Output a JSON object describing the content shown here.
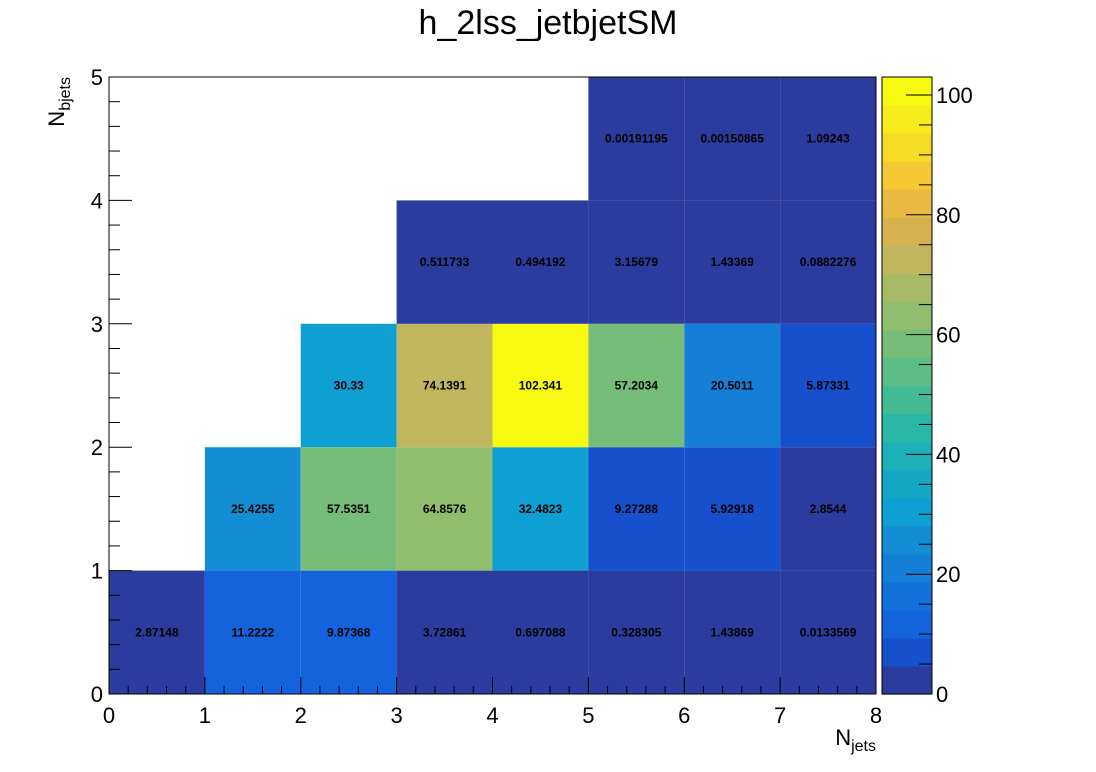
{
  "chart_data": {
    "type": "heatmap",
    "title": "h_2lss_jetbjetSM",
    "xlabel": {
      "main": "N",
      "sub": "jets"
    },
    "ylabel": {
      "main": "N",
      "sub": "bjets"
    },
    "xlim": [
      0,
      8
    ],
    "ylim": [
      0,
      5
    ],
    "x_ticks": [
      "0",
      "1",
      "2",
      "3",
      "4",
      "5",
      "6",
      "7",
      "8"
    ],
    "y_ticks": [
      "0",
      "1",
      "2",
      "3",
      "4",
      "5"
    ],
    "zlim": [
      0,
      103
    ],
    "colorbar_ticks": [
      {
        "value": 0,
        "label": "0"
      },
      {
        "value": 20,
        "label": "20"
      },
      {
        "value": 40,
        "label": "40"
      },
      {
        "value": 60,
        "label": "60"
      },
      {
        "value": 80,
        "label": "80"
      },
      {
        "value": 100,
        "label": "100"
      }
    ],
    "palette": [
      "#2b3c9e",
      "#1750cc",
      "#1563dc",
      "#1371db",
      "#157fd8",
      "#138dd4",
      "#0ea0d2",
      "#14a8c5",
      "#1bb1b6",
      "#2ab8a6",
      "#42bb95",
      "#5cbd86",
      "#77bd7a",
      "#91bd6e",
      "#a9ba66",
      "#c1b65d",
      "#d5b24e",
      "#e9b941",
      "#f5c834",
      "#f6db26",
      "#f5ec1a",
      "#f7f911"
    ],
    "cells": [
      {
        "x": 0.5,
        "y": 0.5,
        "value": 2.87148,
        "label": "2.87148"
      },
      {
        "x": 1.5,
        "y": 0.5,
        "value": 11.2222,
        "label": "11.2222"
      },
      {
        "x": 2.5,
        "y": 0.5,
        "value": 9.87368,
        "label": "9.87368"
      },
      {
        "x": 3.5,
        "y": 0.5,
        "value": 3.72861,
        "label": "3.72861"
      },
      {
        "x": 4.5,
        "y": 0.5,
        "value": 0.697088,
        "label": "0.697088"
      },
      {
        "x": 5.5,
        "y": 0.5,
        "value": 0.328305,
        "label": "0.328305"
      },
      {
        "x": 6.5,
        "y": 0.5,
        "value": 1.43869,
        "label": "1.43869"
      },
      {
        "x": 7.5,
        "y": 0.5,
        "value": 0.0133569,
        "label": "0.0133569"
      },
      {
        "x": 1.5,
        "y": 1.5,
        "value": 25.4255,
        "label": "25.4255"
      },
      {
        "x": 2.5,
        "y": 1.5,
        "value": 57.5351,
        "label": "57.5351"
      },
      {
        "x": 3.5,
        "y": 1.5,
        "value": 64.8576,
        "label": "64.8576"
      },
      {
        "x": 4.5,
        "y": 1.5,
        "value": 32.4823,
        "label": "32.4823"
      },
      {
        "x": 5.5,
        "y": 1.5,
        "value": 9.27288,
        "label": "9.27288"
      },
      {
        "x": 6.5,
        "y": 1.5,
        "value": 5.92918,
        "label": "5.92918"
      },
      {
        "x": 7.5,
        "y": 1.5,
        "value": 2.8544,
        "label": "2.8544"
      },
      {
        "x": 2.5,
        "y": 2.5,
        "value": 30.33,
        "label": "30.33"
      },
      {
        "x": 3.5,
        "y": 2.5,
        "value": 74.1391,
        "label": "74.1391"
      },
      {
        "x": 4.5,
        "y": 2.5,
        "value": 102.341,
        "label": "102.341"
      },
      {
        "x": 5.5,
        "y": 2.5,
        "value": 57.2034,
        "label": "57.2034"
      },
      {
        "x": 6.5,
        "y": 2.5,
        "value": 20.5011,
        "label": "20.5011"
      },
      {
        "x": 7.5,
        "y": 2.5,
        "value": 5.87331,
        "label": "5.87331"
      },
      {
        "x": 3.5,
        "y": 3.5,
        "value": 0.511733,
        "label": "0.511733"
      },
      {
        "x": 4.5,
        "y": 3.5,
        "value": 0.494192,
        "label": "0.494192"
      },
      {
        "x": 5.5,
        "y": 3.5,
        "value": 3.15679,
        "label": "3.15679"
      },
      {
        "x": 6.5,
        "y": 3.5,
        "value": 1.43369,
        "label": "1.43369"
      },
      {
        "x": 7.5,
        "y": 3.5,
        "value": 0.0882276,
        "label": "0.0882276"
      },
      {
        "x": 5.5,
        "y": 4.5,
        "value": 0.00191195,
        "label": "0.00191195"
      },
      {
        "x": 6.5,
        "y": 4.5,
        "value": 0.00150865,
        "label": "0.00150865"
      },
      {
        "x": 7.5,
        "y": 4.5,
        "value": 1.09243,
        "label": "1.09243"
      }
    ]
  }
}
